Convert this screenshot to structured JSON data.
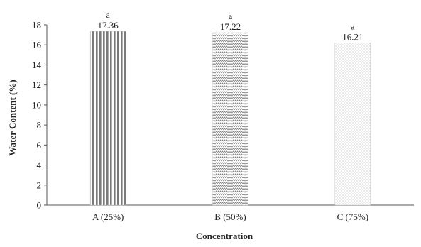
{
  "chart_data": {
    "type": "bar",
    "title": "",
    "xlabel": "Concentration",
    "ylabel": "Water Content (%)",
    "categories": [
      "A (25%)",
      "B (50%)",
      "C (75%)"
    ],
    "values": [
      17.36,
      17.22,
      16.21
    ],
    "value_labels": [
      "17.36",
      "17.22",
      "16.21"
    ],
    "significance_letters": [
      "a",
      "a",
      "a"
    ],
    "ylim": [
      0,
      18
    ],
    "yticks": [
      0,
      2,
      4,
      6,
      8,
      10,
      12,
      14,
      16,
      18
    ],
    "grid": false,
    "legend": "none",
    "bar_patterns": [
      "vertical-stripes",
      "zigzag",
      "dots"
    ],
    "bar_color": "#777777"
  }
}
